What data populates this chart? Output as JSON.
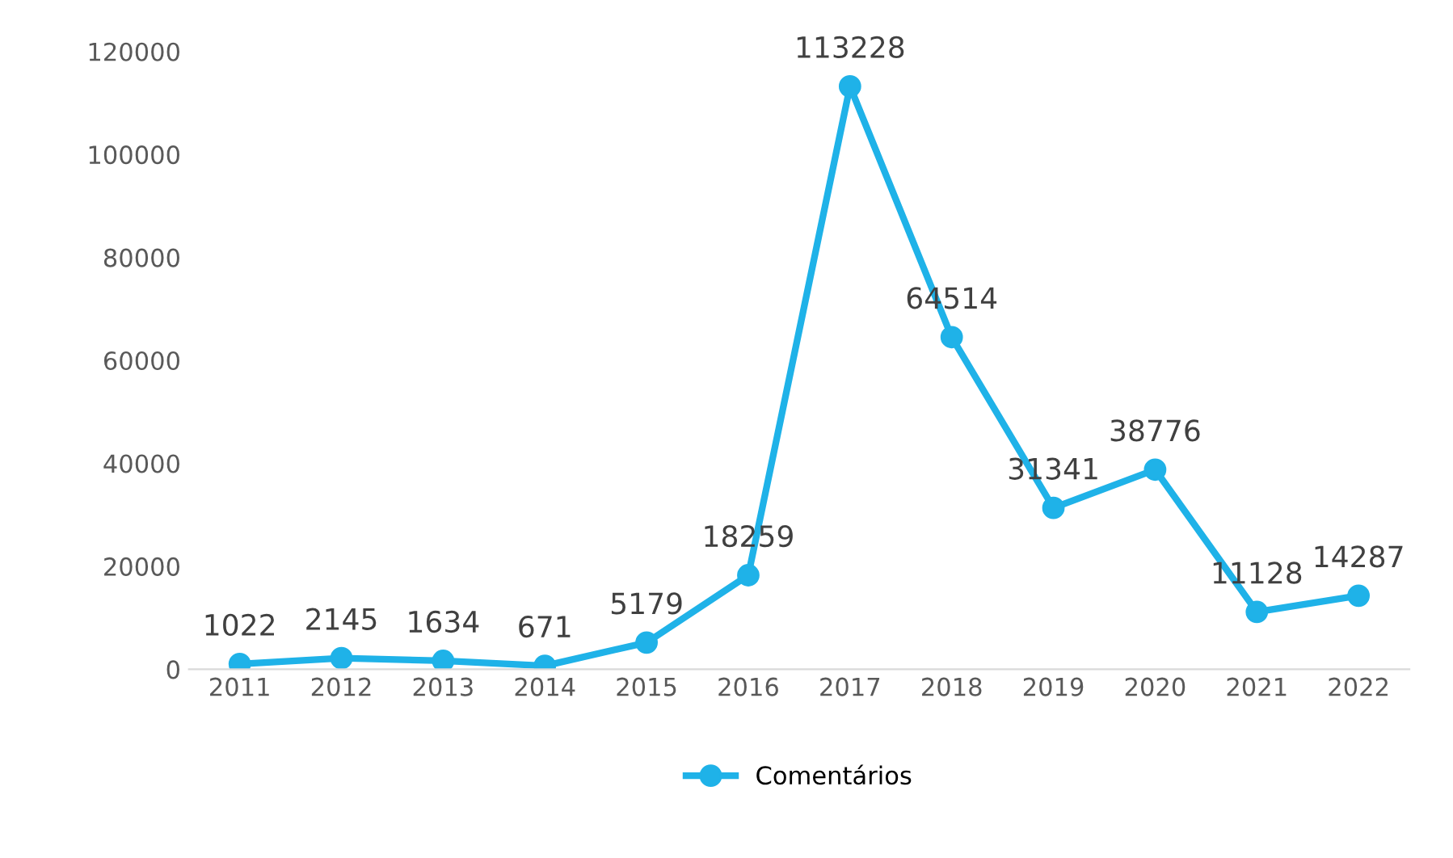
{
  "chart_data": {
    "type": "line",
    "categories": [
      "2011",
      "2012",
      "2013",
      "2014",
      "2015",
      "2016",
      "2017",
      "2018",
      "2019",
      "2020",
      "2021",
      "2022"
    ],
    "series": [
      {
        "name": "Comentários",
        "color": "#1fb2e8",
        "values": [
          1022,
          2145,
          1634,
          671,
          5179,
          18259,
          113228,
          64514,
          31341,
          38776,
          11128,
          14287
        ]
      }
    ],
    "ylim": [
      0,
      120000
    ],
    "yticks": [
      0,
      20000,
      40000,
      60000,
      80000,
      100000,
      120000
    ],
    "grid": false,
    "legend": "bottom",
    "marker": "circle",
    "line_style": "solid",
    "data_labels": true
  }
}
